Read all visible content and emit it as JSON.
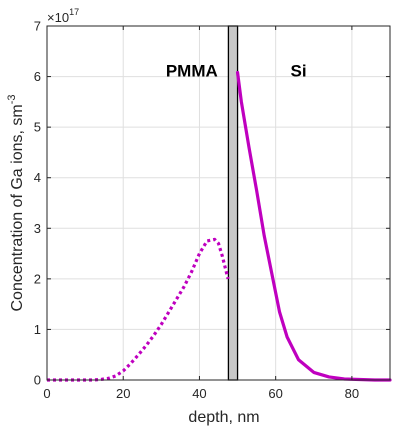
{
  "chart_data": {
    "type": "line",
    "xlabel": "depth, nm",
    "ylabel_main": "Concentration of Ga ions, sm",
    "ylabel_sup": "-3",
    "exponent_prefix": "×10",
    "exponent_power": "17",
    "xlim": [
      0,
      90
    ],
    "ylim": [
      0,
      7
    ],
    "xticks": [
      0,
      20,
      40,
      60,
      80
    ],
    "yticks": [
      0,
      1,
      2,
      3,
      4,
      5,
      6,
      7
    ],
    "grid": true,
    "annotations": [
      {
        "text": "PMMA",
        "x": 38,
        "y": 6.0
      },
      {
        "text": "Si",
        "x": 66,
        "y": 6.0
      }
    ],
    "boundary": {
      "x_start": 47.6,
      "x_end": 50.0,
      "color": "#c8c8c8"
    },
    "series": [
      {
        "style": "dotted",
        "color": "#bf00bf",
        "x": [
          0,
          4,
          8,
          12,
          14,
          16,
          18,
          20,
          22,
          24,
          26,
          28,
          30,
          32,
          34,
          36,
          38,
          40,
          42,
          44,
          45,
          46,
          47.5
        ],
        "y": [
          0,
          0,
          0,
          0,
          0.01,
          0.03,
          0.08,
          0.18,
          0.33,
          0.5,
          0.68,
          0.88,
          1.1,
          1.35,
          1.6,
          1.85,
          2.15,
          2.5,
          2.75,
          2.78,
          2.7,
          2.45,
          2.0
        ]
      },
      {
        "style": "solid",
        "color": "#bf00bf",
        "x": [
          50,
          51,
          53,
          55,
          57,
          59,
          61,
          63,
          66,
          70,
          74,
          78,
          82,
          86,
          90
        ],
        "y": [
          6.08,
          5.5,
          4.6,
          3.75,
          2.85,
          2.1,
          1.35,
          0.85,
          0.4,
          0.15,
          0.06,
          0.02,
          0.01,
          0,
          0
        ]
      }
    ]
  }
}
